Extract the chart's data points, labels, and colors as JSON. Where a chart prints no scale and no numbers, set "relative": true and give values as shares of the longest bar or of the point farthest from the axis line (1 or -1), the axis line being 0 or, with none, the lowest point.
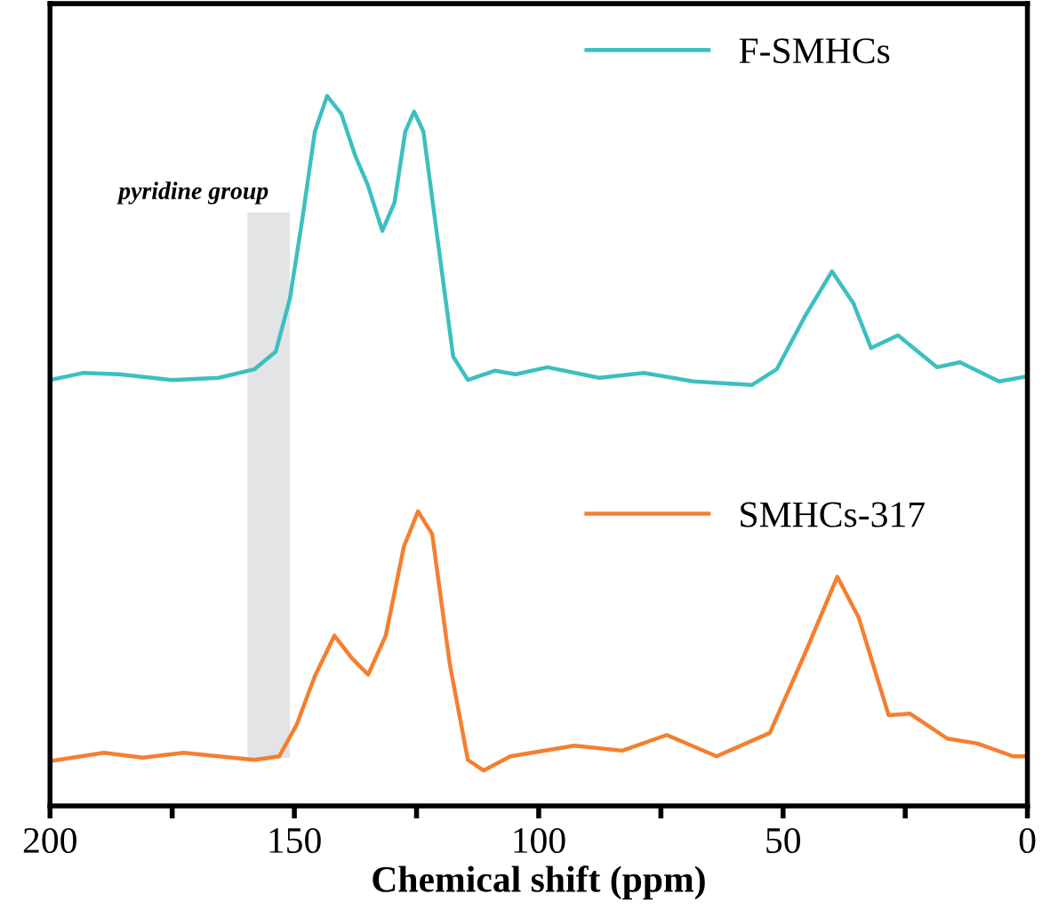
{
  "chart_data": {
    "type": "line",
    "relative": true,
    "xlabel": "Chemical shift (ppm)",
    "xlim": [
      200,
      0
    ],
    "xticks": [
      200,
      {
        "value": 175,
        "label": null
      },
      150,
      {
        "value": 125,
        "label": null
      },
      100,
      {
        "value": 75,
        "label": null
      },
      50,
      {
        "value": 25,
        "label": null
      },
      0
    ],
    "tick_labels": "x",
    "legend": "top right",
    "grid": false,
    "bands": [
      {
        "axis": "x",
        "from": 159.6,
        "to": 150.9,
        "label": "pyridine group",
        "color": "#e3e4e6"
      }
    ],
    "series": [
      {
        "name": "F-SMHCs",
        "color": "#3cbfc0",
        "x": [
          200,
          193.1,
          185.8,
          175,
          165.5,
          158.2,
          153.8,
          150.9,
          148.4,
          145.8,
          143.3,
          140.4,
          137.5,
          135,
          132,
          129.5,
          127.3,
          125.5,
          123.6,
          120.4,
          117.5,
          114.5,
          109,
          104.7,
          98.2,
          87.6,
          78.5,
          68.4,
          56.4,
          51.3,
          45.5,
          40,
          35.6,
          32,
          26.5,
          18.5,
          13.8,
          5.8,
          0
        ],
        "values": [
          0.6,
          0.61,
          0.608,
          0.6,
          0.603,
          0.615,
          0.64,
          0.715,
          0.825,
          0.95,
          1.0,
          0.975,
          0.915,
          0.875,
          0.81,
          0.85,
          0.95,
          0.978,
          0.95,
          0.783,
          0.633,
          0.6,
          0.613,
          0.608,
          0.618,
          0.603,
          0.61,
          0.598,
          0.593,
          0.615,
          0.69,
          0.753,
          0.708,
          0.645,
          0.663,
          0.618,
          0.625,
          0.598,
          0.605
        ]
      },
      {
        "name": "SMHCs-317",
        "color": "#f47f2f",
        "x": [
          200,
          189,
          181,
          172.7,
          158.2,
          153.1,
          149.5,
          145.8,
          141.8,
          138.2,
          134.9,
          131.3,
          127.6,
          124.7,
          121.8,
          118.2,
          114.5,
          111.3,
          105.8,
          92.7,
          82.9,
          73.8,
          63.6,
          52.7,
          45.5,
          38.9,
          34.5,
          28.4,
          24,
          16.4,
          10.2,
          2.9,
          0
        ],
        "values": [
          0.063,
          0.075,
          0.068,
          0.075,
          0.065,
          0.07,
          0.115,
          0.183,
          0.24,
          0.208,
          0.185,
          0.24,
          0.365,
          0.415,
          0.383,
          0.2,
          0.065,
          0.05,
          0.07,
          0.085,
          0.078,
          0.1,
          0.07,
          0.103,
          0.215,
          0.323,
          0.265,
          0.128,
          0.13,
          0.095,
          0.088,
          0.07,
          0.07
        ]
      }
    ]
  }
}
